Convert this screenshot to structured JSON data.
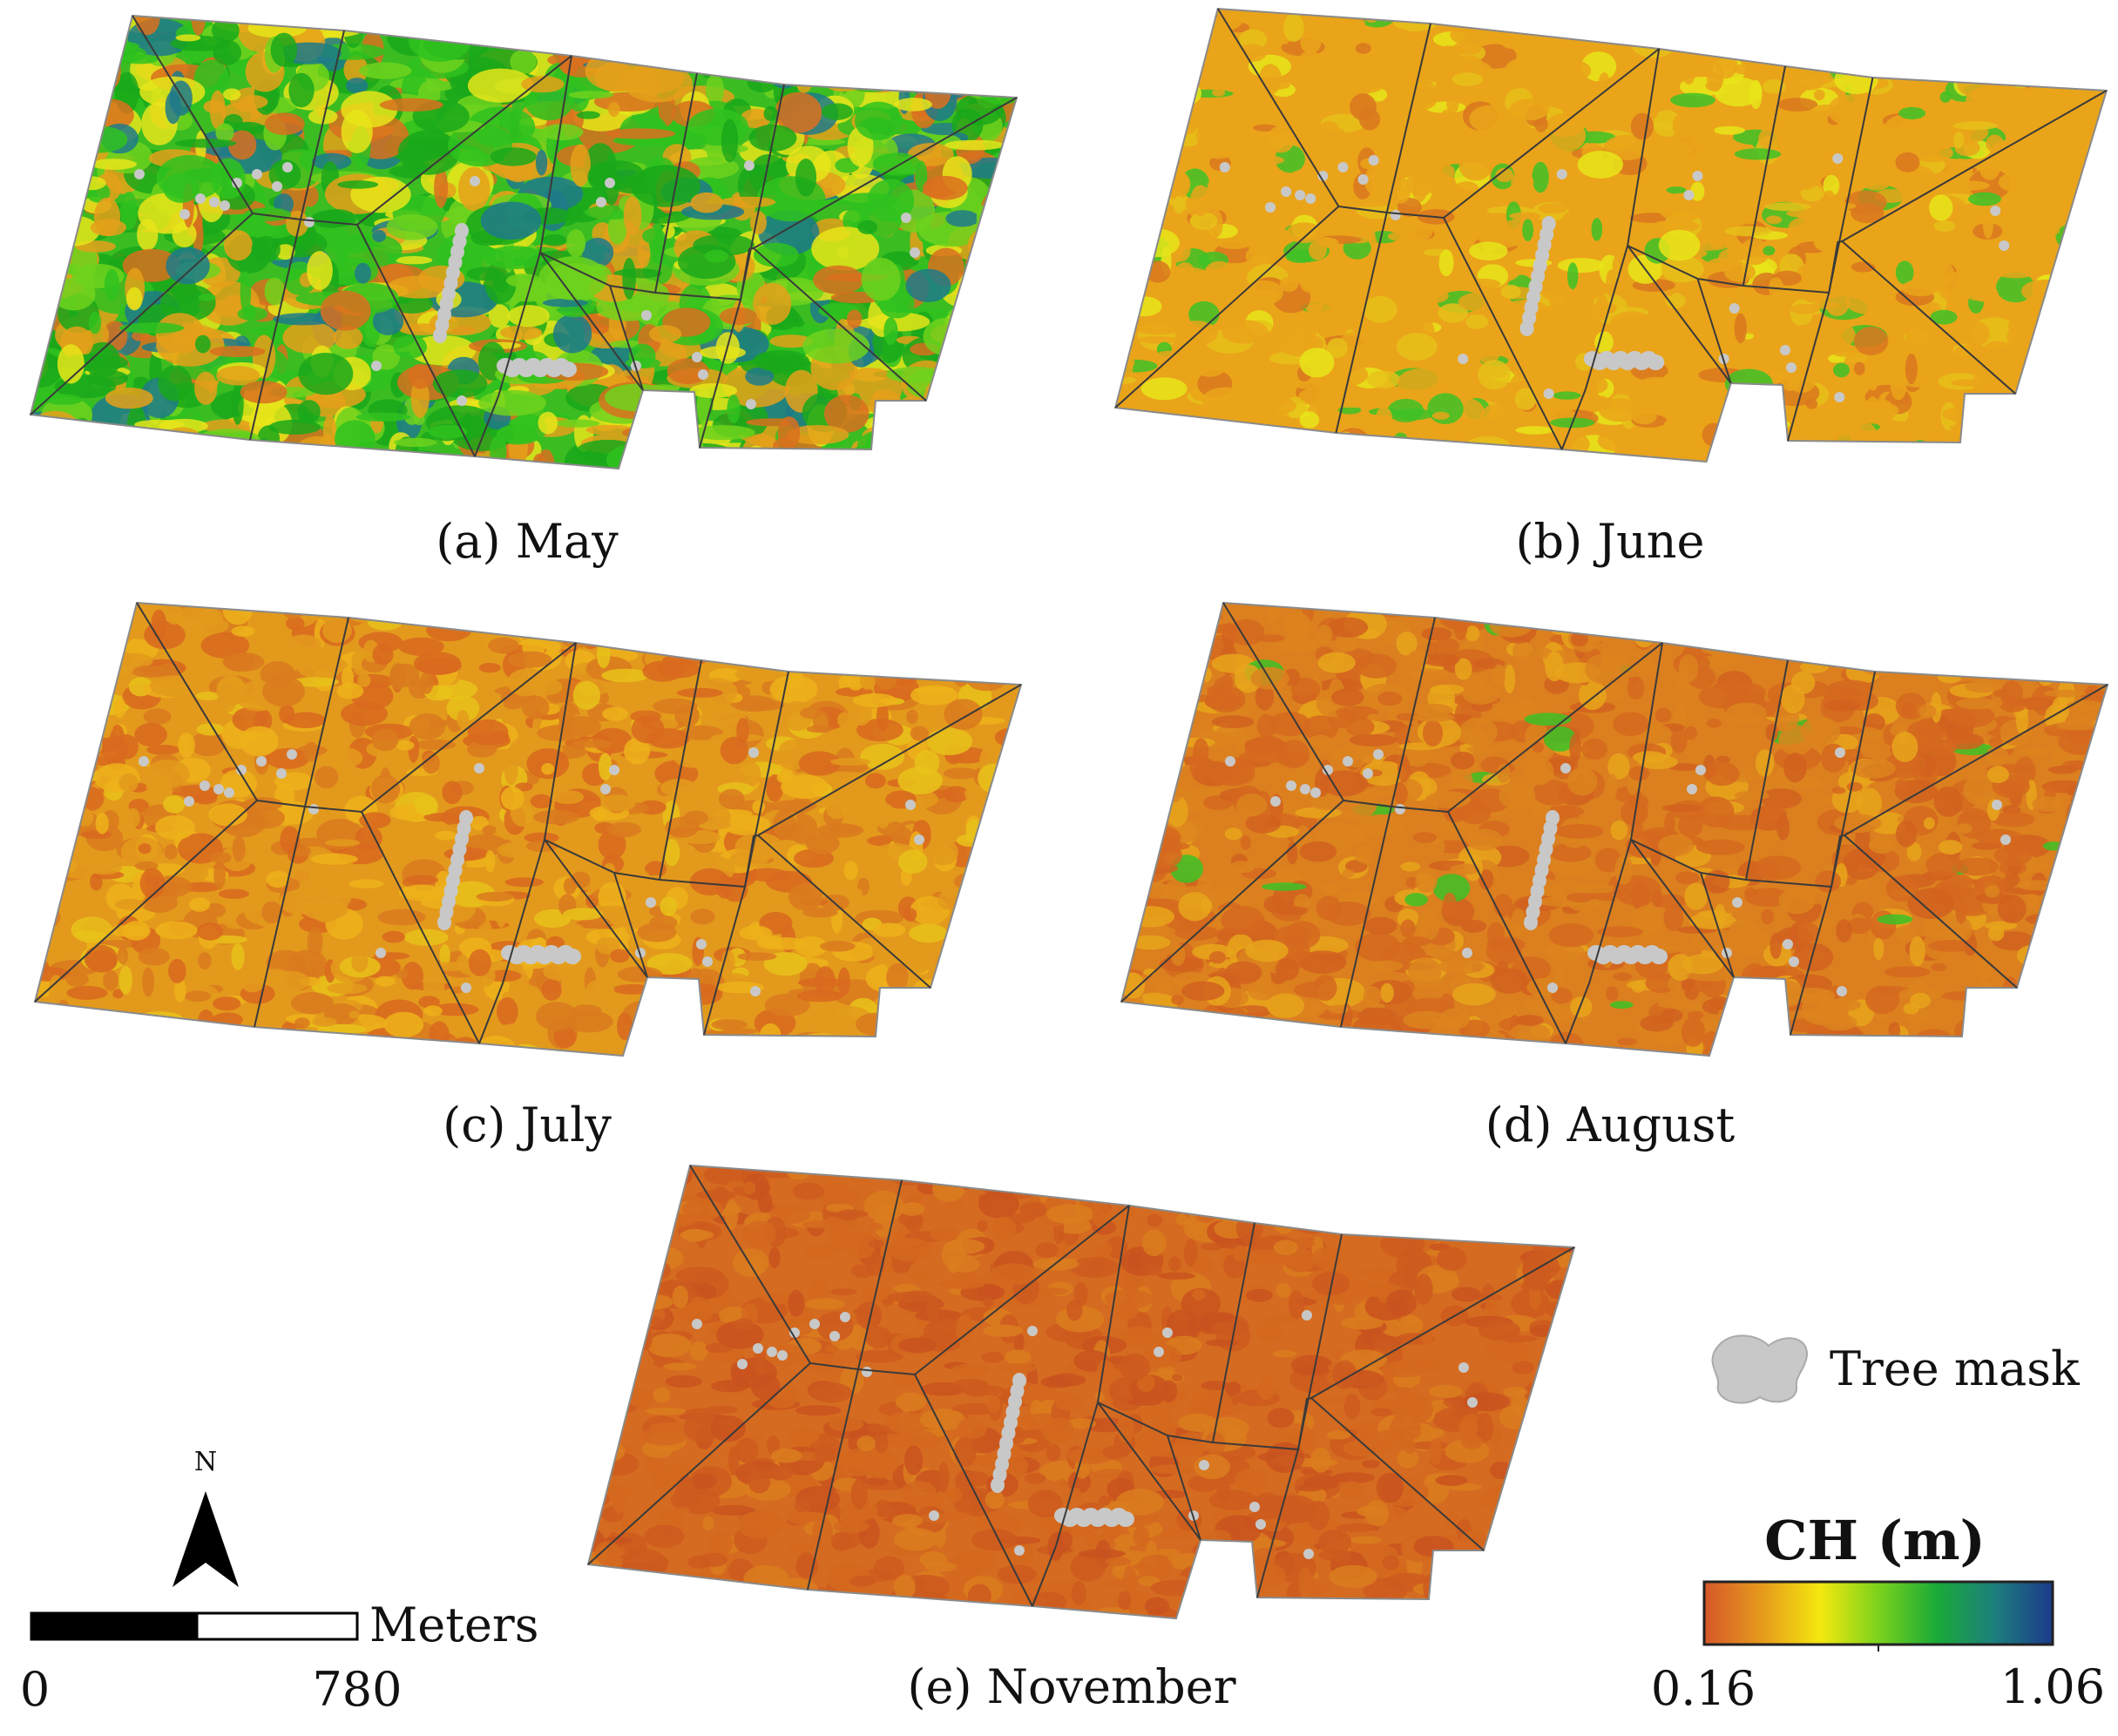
{
  "panels": [
    {
      "id": "may",
      "caption": "(a) May",
      "palette": [
        "#1aa81a",
        "#2fc21f",
        "#6fd21d",
        "#e8e51a",
        "#e5a01a",
        "#d9701e",
        "#1f7a8a"
      ],
      "weights": [
        20,
        18,
        12,
        14,
        18,
        12,
        6
      ],
      "base": "#3bbd22"
    },
    {
      "id": "june",
      "caption": "(b) June",
      "palette": [
        "#eaa41a",
        "#eaa41a",
        "#eaa41a",
        "#e6c11a",
        "#e8e51a",
        "#3ec227",
        "#d9781e"
      ],
      "weights": [
        40,
        20,
        10,
        8,
        6,
        8,
        8
      ],
      "base": "#eaa41a"
    },
    {
      "id": "july",
      "caption": "(c) July",
      "palette": [
        "#e39a1c",
        "#d97a1f",
        "#edb11a",
        "#d8691f",
        "#e7c21a"
      ],
      "weights": [
        30,
        25,
        18,
        20,
        7
      ],
      "base": "#e39a1c"
    },
    {
      "id": "august",
      "caption": "(d) August",
      "palette": [
        "#dc841f",
        "#d5691f",
        "#e7a41b",
        "#d1611f",
        "#3cc126"
      ],
      "weights": [
        30,
        28,
        18,
        18,
        3
      ],
      "base": "#db7f1f"
    },
    {
      "id": "november",
      "caption": "(e) November",
      "palette": [
        "#d4691f",
        "#cc5a1f",
        "#db7c1f",
        "#c9521f"
      ],
      "weights": [
        35,
        30,
        20,
        15
      ],
      "base": "#d56b20"
    }
  ],
  "legend": {
    "tree_mask_label": "Tree mask",
    "tree_mask_color": "#c8c8c8",
    "ch_title": "CH (m)",
    "ch_min": "0.16",
    "ch_max": "1.06",
    "colorramp": [
      "#d5582a",
      "#e69a1c",
      "#f4e80f",
      "#7bd21c",
      "#1aaa38",
      "#1d7f7d",
      "#1c3a8c"
    ]
  },
  "scalebar": {
    "unit": "Meters",
    "start_label": "0",
    "end_label": "780"
  },
  "north_arrow": {
    "label": "N"
  },
  "field_boundary_color": "#3a3a3a"
}
